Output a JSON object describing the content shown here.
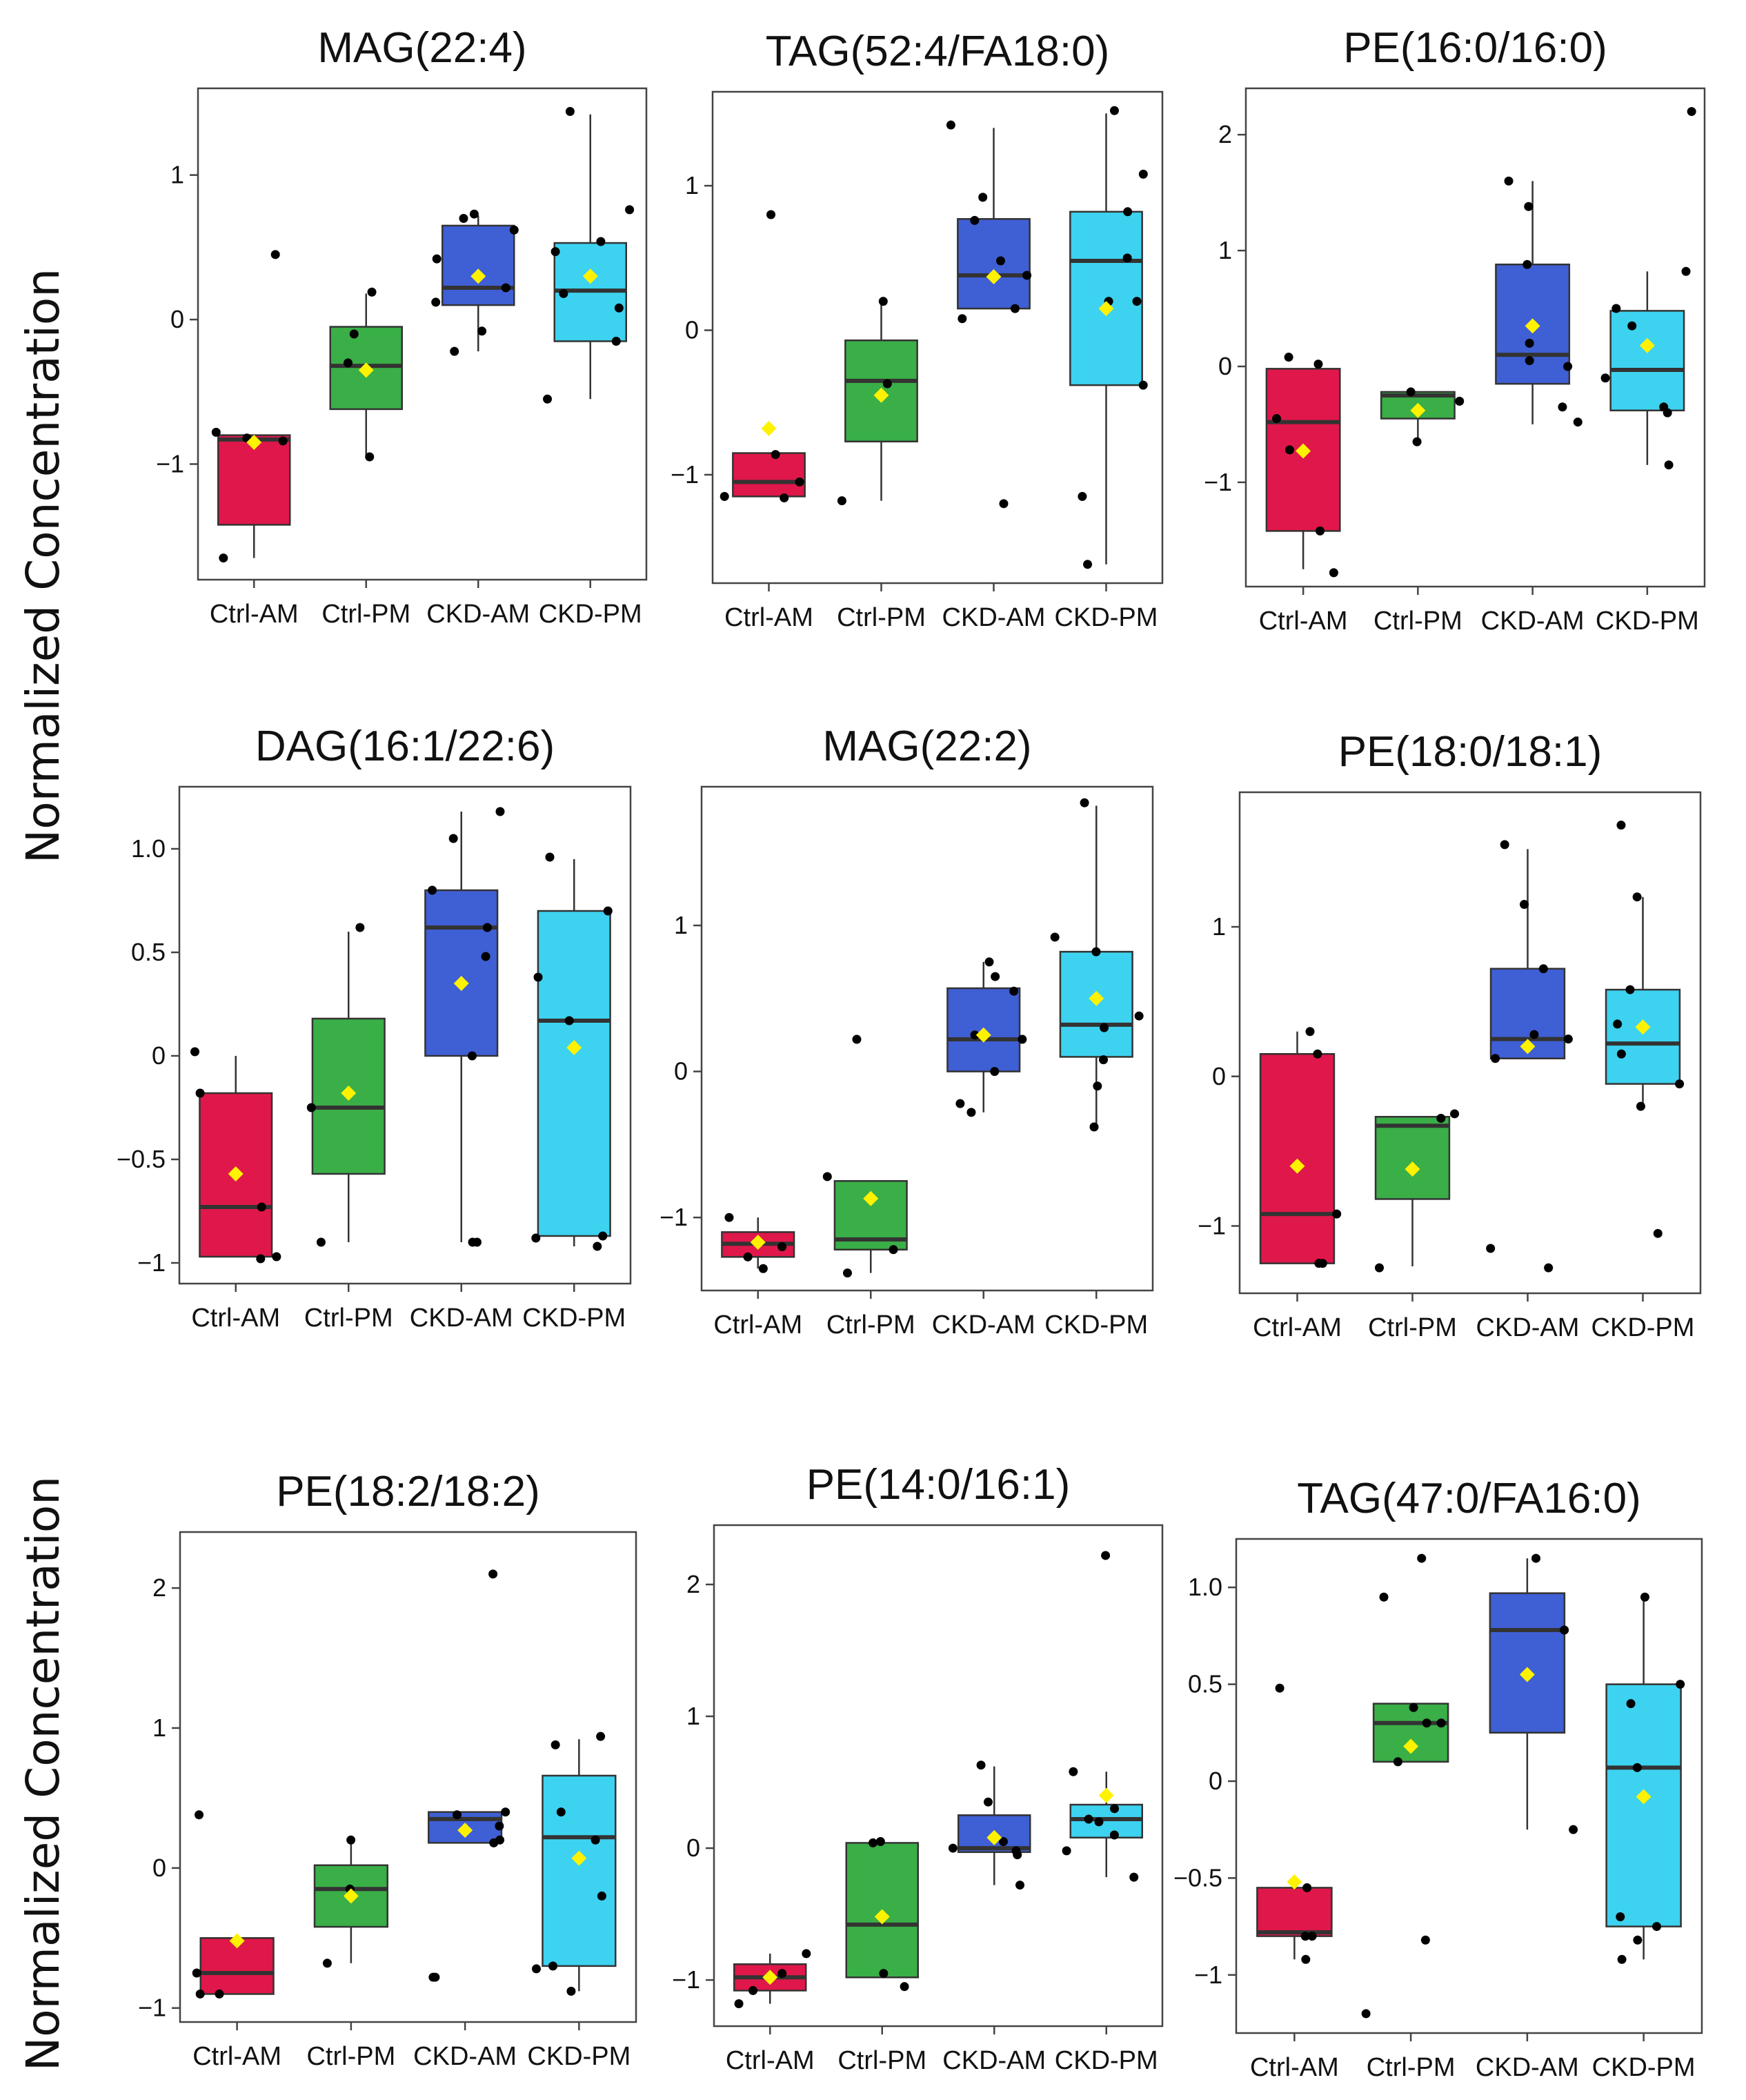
{
  "figure": {
    "ylabel_rows": [
      "Normalized Concentration",
      "Normalized Concentration"
    ]
  },
  "colors": {
    "Ctrl-AM": "#E0174A",
    "Ctrl-PM": "#3AAE47",
    "CKD-AM": "#3F5FD4",
    "CKD-PM": "#3DD2F0",
    "mean": "#FFF200",
    "median": "#333333",
    "point": "#000000"
  },
  "chart_data": [
    {
      "type": "box",
      "title": "MAG(22:4)",
      "categories": [
        "Ctrl-AM",
        "Ctrl-PM",
        "CKD-AM",
        "CKD-PM"
      ],
      "ylim": [
        -1.8,
        1.6
      ],
      "yticks": [
        {
          "v": 1,
          "label": "1"
        },
        {
          "v": 0,
          "label": "0"
        },
        {
          "v": -1,
          "label": "−1"
        }
      ],
      "boxes": [
        {
          "q1": -1.42,
          "median": -0.83,
          "q3": -0.8,
          "wlo": -1.65,
          "whi": -0.8,
          "mean": -0.85,
          "points": [
            0.45,
            -0.78,
            -0.82,
            -0.84,
            -1.65
          ]
        },
        {
          "q1": -0.62,
          "median": -0.32,
          "q3": -0.05,
          "wlo": -0.95,
          "whi": 0.18,
          "mean": -0.35,
          "points": [
            0.19,
            -0.1,
            -0.3,
            -0.95
          ]
        },
        {
          "q1": 0.1,
          "median": 0.22,
          "q3": 0.65,
          "wlo": -0.22,
          "whi": 0.72,
          "mean": 0.3,
          "points": [
            0.73,
            0.7,
            0.62,
            0.42,
            0.22,
            0.12,
            -0.08,
            -0.22
          ]
        },
        {
          "q1": -0.15,
          "median": 0.2,
          "q3": 0.53,
          "wlo": -0.55,
          "whi": 1.42,
          "mean": 0.3,
          "points": [
            1.44,
            0.76,
            0.54,
            0.47,
            0.18,
            0.08,
            -0.15,
            -0.55
          ]
        }
      ]
    },
    {
      "type": "box",
      "title": "TAG(52:4/FA18:0)",
      "categories": [
        "Ctrl-AM",
        "Ctrl-PM",
        "CKD-AM",
        "CKD-PM"
      ],
      "ylim": [
        -1.75,
        1.65
      ],
      "yticks": [
        {
          "v": 1,
          "label": "1"
        },
        {
          "v": 0,
          "label": "0"
        },
        {
          "v": -1,
          "label": "−1"
        }
      ],
      "boxes": [
        {
          "q1": -1.15,
          "median": -1.05,
          "q3": -0.85,
          "wlo": -1.15,
          "whi": -0.85,
          "mean": -0.68,
          "points": [
            0.8,
            -0.86,
            -1.05,
            -1.15,
            -1.16
          ]
        },
        {
          "q1": -0.77,
          "median": -0.35,
          "q3": -0.07,
          "wlo": -1.18,
          "whi": 0.2,
          "mean": -0.45,
          "points": [
            0.2,
            -0.37,
            -1.18
          ]
        },
        {
          "q1": 0.15,
          "median": 0.38,
          "q3": 0.77,
          "wlo": 0.15,
          "whi": 1.4,
          "mean": 0.37,
          "points": [
            1.42,
            0.92,
            0.76,
            0.48,
            0.38,
            0.15,
            0.08,
            -1.2
          ]
        },
        {
          "q1": -0.38,
          "median": 0.48,
          "q3": 0.82,
          "wlo": -1.62,
          "whi": 1.5,
          "mean": 0.15,
          "points": [
            1.52,
            1.08,
            0.82,
            0.5,
            0.2,
            0.2,
            -0.38,
            -1.15,
            -1.62
          ]
        }
      ]
    },
    {
      "type": "box",
      "title": "PE(16:0/16:0)",
      "categories": [
        "Ctrl-AM",
        "Ctrl-PM",
        "CKD-AM",
        "CKD-PM"
      ],
      "ylim": [
        -1.9,
        2.4
      ],
      "yticks": [
        {
          "v": 2,
          "label": "2"
        },
        {
          "v": 1,
          "label": "1"
        },
        {
          "v": 0,
          "label": "0"
        },
        {
          "v": -1,
          "label": "−1"
        }
      ],
      "boxes": [
        {
          "q1": -1.42,
          "median": -0.48,
          "q3": -0.02,
          "wlo": -1.75,
          "whi": -0.02,
          "mean": -0.73,
          "points": [
            0.08,
            0.02,
            -0.45,
            -0.72,
            -1.42,
            -1.78
          ]
        },
        {
          "q1": -0.45,
          "median": -0.25,
          "q3": -0.22,
          "wlo": -0.65,
          "whi": -0.22,
          "mean": -0.38,
          "points": [
            -0.22,
            -0.3,
            -0.65
          ]
        },
        {
          "q1": -0.15,
          "median": 0.1,
          "q3": 0.88,
          "wlo": -0.5,
          "whi": 1.6,
          "mean": 0.35,
          "points": [
            1.6,
            1.38,
            0.88,
            0.2,
            0.05,
            0.0,
            -0.35,
            -0.48
          ]
        },
        {
          "q1": -0.38,
          "median": -0.03,
          "q3": 0.48,
          "wlo": -0.85,
          "whi": 0.82,
          "mean": 0.18,
          "points": [
            2.2,
            0.82,
            0.5,
            0.35,
            -0.1,
            -0.35,
            -0.4,
            -0.85
          ]
        }
      ]
    },
    {
      "type": "box",
      "title": "DAG(16:1/22:6)",
      "categories": [
        "Ctrl-AM",
        "Ctrl-PM",
        "CKD-AM",
        "CKD-PM"
      ],
      "ylim": [
        -1.1,
        1.3
      ],
      "yticks": [
        {
          "v": 1,
          "label": "1.0"
        },
        {
          "v": 0.5,
          "label": "0.5"
        },
        {
          "v": 0,
          "label": "0"
        },
        {
          "v": -0.5,
          "label": "−0.5"
        },
        {
          "v": -1,
          "label": "−1"
        }
      ],
      "boxes": [
        {
          "q1": -0.97,
          "median": -0.73,
          "q3": -0.18,
          "wlo": -0.97,
          "whi": 0.0,
          "mean": -0.57,
          "points": [
            0.02,
            -0.18,
            -0.73,
            -0.97,
            -0.98
          ]
        },
        {
          "q1": -0.57,
          "median": -0.25,
          "q3": 0.18,
          "wlo": -0.9,
          "whi": 0.6,
          "mean": -0.18,
          "points": [
            0.62,
            -0.25,
            -0.9
          ]
        },
        {
          "q1": 0.0,
          "median": 0.62,
          "q3": 0.8,
          "wlo": -0.9,
          "whi": 1.18,
          "mean": 0.35,
          "points": [
            1.18,
            1.05,
            0.8,
            0.62,
            0.48,
            0.0,
            -0.9,
            -0.9
          ]
        },
        {
          "q1": -0.87,
          "median": 0.17,
          "q3": 0.7,
          "wlo": -0.92,
          "whi": 0.95,
          "mean": 0.04,
          "points": [
            0.96,
            0.7,
            0.38,
            0.17,
            -0.87,
            -0.88,
            -0.92
          ]
        }
      ]
    },
    {
      "type": "box",
      "title": "MAG(22:2)",
      "categories": [
        "Ctrl-AM",
        "Ctrl-PM",
        "CKD-AM",
        "CKD-PM"
      ],
      "ylim": [
        -1.5,
        1.95
      ],
      "yticks": [
        {
          "v": 1,
          "label": "1"
        },
        {
          "v": 0,
          "label": "0"
        },
        {
          "v": -1,
          "label": "−1"
        }
      ],
      "boxes": [
        {
          "q1": -1.27,
          "median": -1.18,
          "q3": -1.1,
          "wlo": -1.35,
          "whi": -1.0,
          "mean": -1.17,
          "points": [
            -1.0,
            -1.2,
            -1.27,
            -1.35
          ]
        },
        {
          "q1": -1.22,
          "median": -1.15,
          "q3": -0.75,
          "wlo": -1.38,
          "whi": -0.75,
          "mean": -0.87,
          "points": [
            0.22,
            -0.72,
            -1.22,
            -1.38
          ]
        },
        {
          "q1": 0.0,
          "median": 0.22,
          "q3": 0.57,
          "wlo": -0.28,
          "whi": 0.75,
          "mean": 0.25,
          "points": [
            0.75,
            0.65,
            0.55,
            0.25,
            0.22,
            0.0,
            -0.22,
            -0.28
          ]
        },
        {
          "q1": 0.1,
          "median": 0.32,
          "q3": 0.82,
          "wlo": -0.38,
          "whi": 1.82,
          "mean": 0.5,
          "points": [
            1.84,
            0.92,
            0.82,
            0.38,
            0.3,
            0.08,
            -0.1,
            -0.38
          ]
        }
      ]
    },
    {
      "type": "box",
      "title": "PE(18:0/18:1)",
      "categories": [
        "Ctrl-AM",
        "Ctrl-PM",
        "CKD-AM",
        "CKD-PM"
      ],
      "ylim": [
        -1.45,
        1.9
      ],
      "yticks": [
        {
          "v": 1,
          "label": "1"
        },
        {
          "v": 0,
          "label": "0"
        },
        {
          "v": -1,
          "label": "−1"
        }
      ],
      "boxes": [
        {
          "q1": -1.25,
          "median": -0.92,
          "q3": 0.15,
          "wlo": -1.25,
          "whi": 0.3,
          "mean": -0.6,
          "points": [
            0.3,
            0.15,
            -0.92,
            -1.25,
            -1.25
          ]
        },
        {
          "q1": -0.82,
          "median": -0.33,
          "q3": -0.27,
          "wlo": -1.27,
          "whi": -0.27,
          "mean": -0.62,
          "points": [
            -0.25,
            -0.28,
            -1.28
          ]
        },
        {
          "q1": 0.12,
          "median": 0.25,
          "q3": 0.72,
          "wlo": 0.12,
          "whi": 1.52,
          "mean": 0.2,
          "points": [
            1.55,
            1.15,
            0.72,
            0.28,
            0.25,
            0.12,
            -1.15,
            -1.28
          ]
        },
        {
          "q1": -0.05,
          "median": 0.22,
          "q3": 0.58,
          "wlo": -0.2,
          "whi": 1.2,
          "mean": 0.33,
          "points": [
            1.68,
            1.2,
            0.58,
            0.35,
            0.15,
            -0.05,
            -0.2,
            -1.05
          ]
        }
      ]
    },
    {
      "type": "box",
      "title": "PE(18:2/18:2)",
      "categories": [
        "Ctrl-AM",
        "Ctrl-PM",
        "CKD-AM",
        "CKD-PM"
      ],
      "ylim": [
        -1.1,
        2.4
      ],
      "yticks": [
        {
          "v": 2,
          "label": "2"
        },
        {
          "v": 1,
          "label": "1"
        },
        {
          "v": 0,
          "label": "0"
        },
        {
          "v": -1,
          "label": "−1"
        }
      ],
      "boxes": [
        {
          "q1": -0.9,
          "median": -0.75,
          "q3": -0.5,
          "wlo": -0.9,
          "whi": -0.5,
          "mean": -0.52,
          "points": [
            0.38,
            -0.52,
            -0.75,
            -0.9,
            -0.9
          ]
        },
        {
          "q1": -0.42,
          "median": -0.15,
          "q3": 0.02,
          "wlo": -0.68,
          "whi": 0.2,
          "mean": -0.2,
          "points": [
            0.2,
            -0.15,
            -0.68
          ]
        },
        {
          "q1": 0.18,
          "median": 0.35,
          "q3": 0.4,
          "wlo": 0.18,
          "whi": 0.4,
          "mean": 0.27,
          "points": [
            2.1,
            0.4,
            0.38,
            0.3,
            0.2,
            0.18,
            -0.78,
            -0.78
          ]
        },
        {
          "q1": -0.7,
          "median": 0.22,
          "q3": 0.66,
          "wlo": -0.88,
          "whi": 0.92,
          "mean": 0.07,
          "points": [
            0.94,
            0.88,
            0.4,
            0.2,
            -0.2,
            -0.7,
            -0.72,
            -0.88
          ]
        }
      ]
    },
    {
      "type": "box",
      "title": "PE(14:0/16:1)",
      "categories": [
        "Ctrl-AM",
        "Ctrl-PM",
        "CKD-AM",
        "CKD-PM"
      ],
      "ylim": [
        -1.35,
        2.45
      ],
      "yticks": [
        {
          "v": 2,
          "label": "2"
        },
        {
          "v": 1,
          "label": "1"
        },
        {
          "v": 0,
          "label": "0"
        },
        {
          "v": -1,
          "label": "−1"
        }
      ],
      "boxes": [
        {
          "q1": -1.08,
          "median": -0.98,
          "q3": -0.88,
          "wlo": -1.18,
          "whi": -0.8,
          "mean": -0.98,
          "points": [
            -0.8,
            -0.95,
            -1.08,
            -1.18
          ]
        },
        {
          "q1": -0.98,
          "median": -0.58,
          "q3": 0.04,
          "wlo": -0.98,
          "whi": 0.04,
          "mean": -0.52,
          "points": [
            0.05,
            0.04,
            -0.95,
            -1.05
          ]
        },
        {
          "q1": -0.03,
          "median": 0.0,
          "q3": 0.25,
          "wlo": -0.28,
          "whi": 0.62,
          "mean": 0.08,
          "points": [
            0.63,
            0.35,
            0.05,
            0.0,
            -0.02,
            -0.05,
            -0.28
          ]
        },
        {
          "q1": 0.08,
          "median": 0.22,
          "q3": 0.33,
          "wlo": -0.22,
          "whi": 0.58,
          "mean": 0.4,
          "points": [
            2.22,
            0.58,
            0.3,
            0.22,
            0.2,
            0.1,
            -0.02,
            -0.22
          ]
        }
      ]
    },
    {
      "type": "box",
      "title": "TAG(47:0/FA16:0)",
      "categories": [
        "Ctrl-AM",
        "Ctrl-PM",
        "CKD-AM",
        "CKD-PM"
      ],
      "ylim": [
        -1.3,
        1.25
      ],
      "yticks": [
        {
          "v": 1,
          "label": "1.0"
        },
        {
          "v": 0.5,
          "label": "0.5"
        },
        {
          "v": 0,
          "label": "0"
        },
        {
          "v": -0.5,
          "label": "−0.5"
        },
        {
          "v": -1,
          "label": "−1"
        }
      ],
      "boxes": [
        {
          "q1": -0.8,
          "median": -0.78,
          "q3": -0.55,
          "wlo": -0.92,
          "whi": -0.55,
          "mean": -0.52,
          "points": [
            0.48,
            -0.55,
            -0.8,
            -0.8,
            -0.92
          ]
        },
        {
          "q1": 0.1,
          "median": 0.3,
          "q3": 0.4,
          "wlo": 0.1,
          "whi": 0.4,
          "mean": 0.18,
          "points": [
            1.15,
            0.95,
            0.38,
            0.3,
            0.3,
            0.1,
            -0.82,
            -1.2
          ]
        },
        {
          "q1": 0.25,
          "median": 0.78,
          "q3": 0.97,
          "wlo": -0.25,
          "whi": 1.15,
          "mean": 0.55,
          "points": [
            1.15,
            0.78,
            -0.25
          ]
        },
        {
          "q1": -0.75,
          "median": 0.07,
          "q3": 0.5,
          "wlo": -0.92,
          "whi": 0.95,
          "mean": -0.08,
          "points": [
            0.95,
            0.5,
            0.4,
            0.07,
            -0.7,
            -0.75,
            -0.82,
            -0.92
          ]
        }
      ]
    }
  ]
}
